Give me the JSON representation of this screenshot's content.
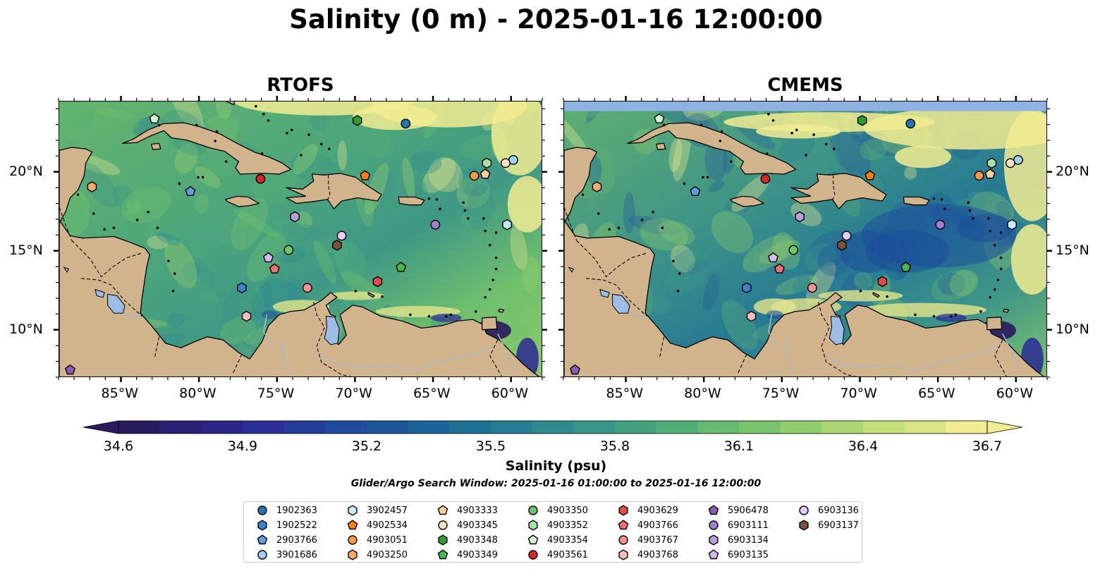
{
  "figure": {
    "title": "Salinity (0 m) - 2025-01-16 12:00:00",
    "subtitle": "Glider/Argo Search Window: 2025-01-16 01:00:00 to 2025-01-16 12:00:00"
  },
  "panels": [
    {
      "title": "RTOFS",
      "model": "rtofs"
    },
    {
      "title": "CMEMS",
      "model": "cmems"
    }
  ],
  "axes": {
    "lon_range": [
      -89.0,
      -58.0
    ],
    "lat_range": [
      7.0,
      24.5
    ],
    "lon_ticks": [
      {
        "value": -85,
        "label": "85°W"
      },
      {
        "value": -80,
        "label": "80°W"
      },
      {
        "value": -75,
        "label": "75°W"
      },
      {
        "value": -70,
        "label": "70°W"
      },
      {
        "value": -65,
        "label": "65°W"
      },
      {
        "value": -60,
        "label": "60°W"
      }
    ],
    "lat_ticks": [
      {
        "value": 20,
        "label": "20°N"
      },
      {
        "value": 15,
        "label": "15°N"
      },
      {
        "value": 10,
        "label": "10°N"
      }
    ]
  },
  "colorbar": {
    "label": "Salinity (psu)",
    "min": 34.6,
    "max": 36.7,
    "extend": "both",
    "ticks": [
      "34.6",
      "34.9",
      "35.2",
      "35.5",
      "35.8",
      "36.1",
      "36.4",
      "36.7"
    ],
    "colormap": [
      "#2a1a5e",
      "#2b2893",
      "#1f4b9c",
      "#1a6a98",
      "#2e8a8e",
      "#49a87a",
      "#77c46b",
      "#b7dc72",
      "#f2ec92"
    ]
  },
  "colors": {
    "land": "#d2b48c",
    "lakes": "#9dbde6",
    "cmems_nodata": "#8eb2e2",
    "marker_edge": "#000000"
  },
  "legend": {
    "items": [
      {
        "id": "1902363",
        "marker": "circle",
        "color": "#1f77b4",
        "lon": -66.8,
        "lat": 23.1
      },
      {
        "id": "1902522",
        "marker": "hexagon",
        "color": "#3a82c8",
        "lon": -77.3,
        "lat": 12.7
      },
      {
        "id": "2903766",
        "marker": "pentagon",
        "color": "#5a9fe0",
        "lon": -80.6,
        "lat": 18.8
      },
      {
        "id": "3901686",
        "marker": "circle",
        "color": "#9fd0f5",
        "lon": -59.9,
        "lat": 20.8
      },
      {
        "id": "3902457",
        "marker": "hexagon",
        "color": "#c9e8fb",
        "lon": -60.3,
        "lat": 16.7
      },
      {
        "id": "4902534",
        "marker": "pentagon",
        "color": "#ff7f0e",
        "lon": -69.4,
        "lat": 19.8
      },
      {
        "id": "4903051",
        "marker": "circle",
        "color": "#ff9a40",
        "lon": -62.4,
        "lat": 19.8
      },
      {
        "id": "4903250",
        "marker": "hexagon",
        "color": "#ffab6b",
        "lon": -86.9,
        "lat": 19.1
      },
      {
        "id": "4903333",
        "marker": "pentagon",
        "color": "#ffcf99",
        "lon": -61.7,
        "lat": 19.9
      },
      {
        "id": "4903345",
        "marker": "circle",
        "color": "#ffe2c2",
        "lon": -60.4,
        "lat": 20.6
      },
      {
        "id": "4903348",
        "marker": "hexagon",
        "color": "#2ca02c",
        "lon": -69.9,
        "lat": 23.3
      },
      {
        "id": "4903349",
        "marker": "pentagon",
        "color": "#4cb84c",
        "lon": -67.1,
        "lat": 14.0
      },
      {
        "id": "4903350",
        "marker": "circle",
        "color": "#6cc66c",
        "lon": -74.3,
        "lat": 15.1
      },
      {
        "id": "4903352",
        "marker": "hexagon",
        "color": "#a3e3a3",
        "lon": -61.6,
        "lat": 20.6
      },
      {
        "id": "4903354",
        "marker": "pentagon",
        "color": "#d2f5d2",
        "lon": -82.9,
        "lat": 23.4
      },
      {
        "id": "4903561",
        "marker": "circle",
        "color": "#d62728",
        "lon": -76.1,
        "lat": 19.6
      },
      {
        "id": "4903629",
        "marker": "hexagon",
        "color": "#e34a4a",
        "lon": -68.6,
        "lat": 13.1
      },
      {
        "id": "4903766",
        "marker": "pentagon",
        "color": "#f07070",
        "lon": -75.2,
        "lat": 13.9
      },
      {
        "id": "4903767",
        "marker": "circle",
        "color": "#f59393",
        "lon": -73.1,
        "lat": 12.7
      },
      {
        "id": "4903768",
        "marker": "hexagon",
        "color": "#f8bcbc",
        "lon": -77.0,
        "lat": 10.9
      },
      {
        "id": "5906478",
        "marker": "pentagon",
        "color": "#8c5cb8",
        "lon": -88.3,
        "lat": 7.5
      },
      {
        "id": "6903111",
        "marker": "circle",
        "color": "#a67ccc",
        "lon": -64.9,
        "lat": 16.7
      },
      {
        "id": "6903134",
        "marker": "hexagon",
        "color": "#b99ddc",
        "lon": -73.9,
        "lat": 17.2
      },
      {
        "id": "6903135",
        "marker": "pentagon",
        "color": "#d5b8f0",
        "lon": -75.6,
        "lat": 14.6
      },
      {
        "id": "6903136",
        "marker": "circle",
        "color": "#e6ccfa",
        "lon": -70.9,
        "lat": 16.0
      },
      {
        "id": "6903137",
        "marker": "hexagon",
        "color": "#7a5234",
        "lon": -71.2,
        "lat": 15.4
      }
    ]
  }
}
